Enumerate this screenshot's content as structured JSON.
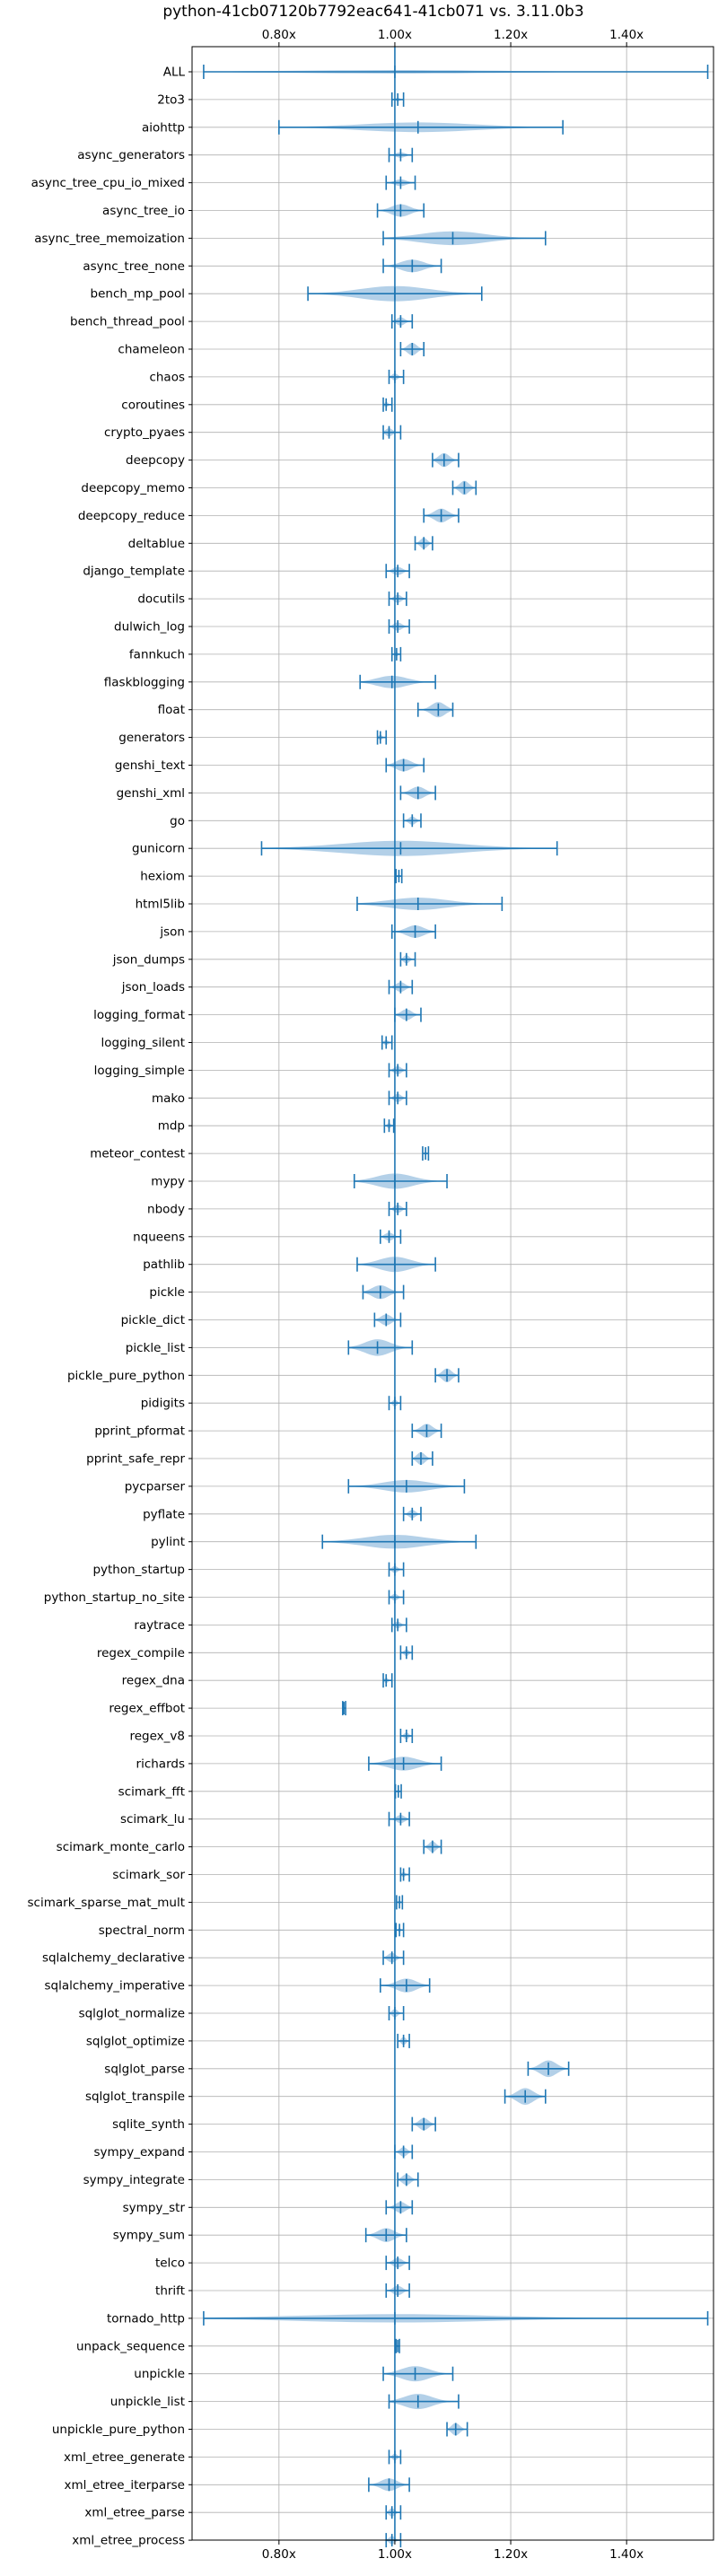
{
  "chart_data": {
    "type": "violin",
    "title": "python-41cb07120b7792eac641-41cb071 vs. 3.11.0b3",
    "orientation": "horizontal",
    "xlim": [
      0.65,
      1.55
    ],
    "x_ticks": [
      0.8,
      1.0,
      1.2,
      1.4
    ],
    "x_tick_labels": [
      "0.80x",
      "1.00x",
      "1.20x",
      "1.40x"
    ],
    "x_ticks_top": true,
    "x_ticks_bottom": true,
    "grid": true,
    "reference_line": 1.0,
    "color": "#1f77b4",
    "fill_color": "#a6c8e4",
    "benchmarks": [
      {
        "name": "ALL",
        "min": 0.67,
        "max": 1.54,
        "median": 1.0,
        "w": 0.01
      },
      {
        "name": "2to3",
        "min": 0.995,
        "max": 1.015,
        "median": 1.005,
        "w": 0.008
      },
      {
        "name": "aiohttp",
        "min": 0.8,
        "max": 1.29,
        "median": 1.04,
        "w": 0.35
      },
      {
        "name": "async_generators",
        "min": 0.99,
        "max": 1.03,
        "median": 1.01,
        "w": 0.2
      },
      {
        "name": "async_tree_cpu_io_mixed",
        "min": 0.985,
        "max": 1.035,
        "median": 1.01,
        "w": 0.25
      },
      {
        "name": "async_tree_io",
        "min": 0.97,
        "max": 1.05,
        "median": 1.01,
        "w": 0.45
      },
      {
        "name": "async_tree_memoization",
        "min": 0.98,
        "max": 1.26,
        "median": 1.1,
        "w": 0.5
      },
      {
        "name": "async_tree_none",
        "min": 0.98,
        "max": 1.08,
        "median": 1.03,
        "w": 0.45
      },
      {
        "name": "bench_mp_pool",
        "min": 0.85,
        "max": 1.15,
        "median": 1.0,
        "w": 0.55
      },
      {
        "name": "bench_thread_pool",
        "min": 0.995,
        "max": 1.03,
        "median": 1.01,
        "w": 0.3
      },
      {
        "name": "chameleon",
        "min": 1.01,
        "max": 1.05,
        "median": 1.03,
        "w": 0.45
      },
      {
        "name": "chaos",
        "min": 0.99,
        "max": 1.015,
        "median": 1.0,
        "w": 0.25
      },
      {
        "name": "coroutines",
        "min": 0.98,
        "max": 0.995,
        "median": 0.985,
        "w": 0.2
      },
      {
        "name": "crypto_pyaes",
        "min": 0.98,
        "max": 1.01,
        "median": 0.99,
        "w": 0.3
      },
      {
        "name": "deepcopy",
        "min": 1.065,
        "max": 1.11,
        "median": 1.085,
        "w": 0.5
      },
      {
        "name": "deepcopy_memo",
        "min": 1.1,
        "max": 1.14,
        "median": 1.12,
        "w": 0.5
      },
      {
        "name": "deepcopy_reduce",
        "min": 1.05,
        "max": 1.11,
        "median": 1.08,
        "w": 0.5
      },
      {
        "name": "deltablue",
        "min": 1.035,
        "max": 1.065,
        "median": 1.05,
        "w": 0.4
      },
      {
        "name": "django_template",
        "min": 0.985,
        "max": 1.025,
        "median": 1.005,
        "w": 0.3
      },
      {
        "name": "docutils",
        "min": 0.99,
        "max": 1.02,
        "median": 1.005,
        "w": 0.3
      },
      {
        "name": "dulwich_log",
        "min": 0.99,
        "max": 1.025,
        "median": 1.005,
        "w": 0.3
      },
      {
        "name": "fannkuch",
        "min": 0.995,
        "max": 1.01,
        "median": 1.003,
        "w": 0.15
      },
      {
        "name": "flaskblogging",
        "min": 0.94,
        "max": 1.07,
        "median": 0.995,
        "w": 0.45
      },
      {
        "name": "float",
        "min": 1.04,
        "max": 1.1,
        "median": 1.075,
        "w": 0.55
      },
      {
        "name": "generators",
        "min": 0.97,
        "max": 0.985,
        "median": 0.975,
        "w": 0.2
      },
      {
        "name": "genshi_text",
        "min": 0.985,
        "max": 1.05,
        "median": 1.015,
        "w": 0.45
      },
      {
        "name": "genshi_xml",
        "min": 1.01,
        "max": 1.07,
        "median": 1.04,
        "w": 0.45
      },
      {
        "name": "go",
        "min": 1.015,
        "max": 1.045,
        "median": 1.03,
        "w": 0.3
      },
      {
        "name": "gunicorn",
        "min": 0.77,
        "max": 1.28,
        "median": 1.01,
        "w": 0.55
      },
      {
        "name": "hexiom",
        "min": 1.002,
        "max": 1.012,
        "median": 1.007,
        "w": 0.1
      },
      {
        "name": "html5lib",
        "min": 0.935,
        "max": 1.185,
        "median": 1.04,
        "w": 0.45
      },
      {
        "name": "json",
        "min": 0.995,
        "max": 1.07,
        "median": 1.035,
        "w": 0.45
      },
      {
        "name": "json_dumps",
        "min": 1.01,
        "max": 1.035,
        "median": 1.02,
        "w": 0.3
      },
      {
        "name": "json_loads",
        "min": 0.99,
        "max": 1.03,
        "median": 1.01,
        "w": 0.35
      },
      {
        "name": "logging_format",
        "min": 1.0,
        "max": 1.045,
        "median": 1.02,
        "w": 0.4
      },
      {
        "name": "logging_silent",
        "min": 0.978,
        "max": 0.995,
        "median": 0.985,
        "w": 0.2
      },
      {
        "name": "logging_simple",
        "min": 0.99,
        "max": 1.02,
        "median": 1.005,
        "w": 0.3
      },
      {
        "name": "mako",
        "min": 0.99,
        "max": 1.02,
        "median": 1.005,
        "w": 0.3
      },
      {
        "name": "mdp",
        "min": 0.982,
        "max": 0.998,
        "median": 0.99,
        "w": 0.2
      },
      {
        "name": "meteor_contest",
        "min": 1.048,
        "max": 1.058,
        "median": 1.053,
        "w": 0.1
      },
      {
        "name": "mypy",
        "min": 0.93,
        "max": 1.09,
        "median": 1.0,
        "w": 0.55
      },
      {
        "name": "nbody",
        "min": 0.99,
        "max": 1.02,
        "median": 1.005,
        "w": 0.3
      },
      {
        "name": "nqueens",
        "min": 0.975,
        "max": 1.01,
        "median": 0.99,
        "w": 0.3
      },
      {
        "name": "pathlib",
        "min": 0.935,
        "max": 1.07,
        "median": 1.0,
        "w": 0.55
      },
      {
        "name": "pickle",
        "min": 0.945,
        "max": 1.015,
        "median": 0.975,
        "w": 0.5
      },
      {
        "name": "pickle_dict",
        "min": 0.965,
        "max": 1.01,
        "median": 0.985,
        "w": 0.4
      },
      {
        "name": "pickle_list",
        "min": 0.92,
        "max": 1.03,
        "median": 0.97,
        "w": 0.6
      },
      {
        "name": "pickle_pure_python",
        "min": 1.07,
        "max": 1.11,
        "median": 1.09,
        "w": 0.5
      },
      {
        "name": "pidigits",
        "min": 0.99,
        "max": 1.01,
        "median": 1.0,
        "w": 0.25
      },
      {
        "name": "pprint_pformat",
        "min": 1.03,
        "max": 1.08,
        "median": 1.055,
        "w": 0.5
      },
      {
        "name": "pprint_safe_repr",
        "min": 1.03,
        "max": 1.065,
        "median": 1.045,
        "w": 0.45
      },
      {
        "name": "pycparser",
        "min": 0.92,
        "max": 1.12,
        "median": 1.02,
        "w": 0.45
      },
      {
        "name": "pyflate",
        "min": 1.015,
        "max": 1.045,
        "median": 1.03,
        "w": 0.3
      },
      {
        "name": "pylint",
        "min": 0.875,
        "max": 1.14,
        "median": 1.0,
        "w": 0.5
      },
      {
        "name": "python_startup",
        "min": 0.99,
        "max": 1.015,
        "median": 1.0,
        "w": 0.25
      },
      {
        "name": "python_startup_no_site",
        "min": 0.99,
        "max": 1.015,
        "median": 1.0,
        "w": 0.25
      },
      {
        "name": "raytrace",
        "min": 0.995,
        "max": 1.02,
        "median": 1.005,
        "w": 0.25
      },
      {
        "name": "regex_compile",
        "min": 1.01,
        "max": 1.03,
        "median": 1.02,
        "w": 0.25
      },
      {
        "name": "regex_dna",
        "min": 0.98,
        "max": 0.995,
        "median": 0.985,
        "w": 0.2
      },
      {
        "name": "regex_effbot",
        "min": 0.91,
        "max": 0.915,
        "median": 0.912,
        "w": 0.1
      },
      {
        "name": "regex_v8",
        "min": 1.01,
        "max": 1.03,
        "median": 1.02,
        "w": 0.25
      },
      {
        "name": "richards",
        "min": 0.955,
        "max": 1.08,
        "median": 1.015,
        "w": 0.5
      },
      {
        "name": "scimark_fft",
        "min": 1.001,
        "max": 1.011,
        "median": 1.006,
        "w": 0.1
      },
      {
        "name": "scimark_lu",
        "min": 0.99,
        "max": 1.025,
        "median": 1.01,
        "w": 0.3
      },
      {
        "name": "scimark_monte_carlo",
        "min": 1.05,
        "max": 1.08,
        "median": 1.065,
        "w": 0.4
      },
      {
        "name": "scimark_sor",
        "min": 1.01,
        "max": 1.025,
        "median": 1.015,
        "w": 0.2
      },
      {
        "name": "scimark_sparse_mat_mult",
        "min": 1.003,
        "max": 1.013,
        "median": 1.008,
        "w": 0.1
      },
      {
        "name": "spectral_norm",
        "min": 1.002,
        "max": 1.015,
        "median": 1.008,
        "w": 0.12
      },
      {
        "name": "sqlalchemy_declarative",
        "min": 0.98,
        "max": 1.015,
        "median": 0.995,
        "w": 0.35
      },
      {
        "name": "sqlalchemy_imperative",
        "min": 0.975,
        "max": 1.06,
        "median": 1.02,
        "w": 0.5
      },
      {
        "name": "sqlglot_normalize",
        "min": 0.99,
        "max": 1.015,
        "median": 1.0,
        "w": 0.3
      },
      {
        "name": "sqlglot_optimize",
        "min": 1.005,
        "max": 1.025,
        "median": 1.015,
        "w": 0.3
      },
      {
        "name": "sqlglot_parse",
        "min": 1.23,
        "max": 1.3,
        "median": 1.265,
        "w": 0.6
      },
      {
        "name": "sqlglot_transpile",
        "min": 1.19,
        "max": 1.26,
        "median": 1.225,
        "w": 0.6
      },
      {
        "name": "sqlite_synth",
        "min": 1.03,
        "max": 1.07,
        "median": 1.05,
        "w": 0.45
      },
      {
        "name": "sympy_expand",
        "min": 1.0,
        "max": 1.03,
        "median": 1.015,
        "w": 0.35
      },
      {
        "name": "sympy_integrate",
        "min": 1.005,
        "max": 1.04,
        "median": 1.02,
        "w": 0.4
      },
      {
        "name": "sympy_str",
        "min": 0.985,
        "max": 1.03,
        "median": 1.01,
        "w": 0.4
      },
      {
        "name": "sympy_sum",
        "min": 0.95,
        "max": 1.02,
        "median": 0.985,
        "w": 0.5
      },
      {
        "name": "telco",
        "min": 0.985,
        "max": 1.025,
        "median": 1.005,
        "w": 0.35
      },
      {
        "name": "thrift",
        "min": 0.985,
        "max": 1.025,
        "median": 1.005,
        "w": 0.35
      },
      {
        "name": "tornado_http",
        "min": 0.67,
        "max": 1.54,
        "median": 1.0,
        "w": 0.3
      },
      {
        "name": "unpack_sequence",
        "min": 1.002,
        "max": 1.008,
        "median": 1.005,
        "w": 0.08
      },
      {
        "name": "unpickle",
        "min": 0.98,
        "max": 1.1,
        "median": 1.035,
        "w": 0.55
      },
      {
        "name": "unpickle_list",
        "min": 0.99,
        "max": 1.11,
        "median": 1.04,
        "w": 0.55
      },
      {
        "name": "unpickle_pure_python",
        "min": 1.09,
        "max": 1.125,
        "median": 1.105,
        "w": 0.45
      },
      {
        "name": "xml_etree_generate",
        "min": 0.99,
        "max": 1.01,
        "median": 1.0,
        "w": 0.25
      },
      {
        "name": "xml_etree_iterparse",
        "min": 0.955,
        "max": 1.025,
        "median": 0.99,
        "w": 0.45
      },
      {
        "name": "xml_etree_parse",
        "min": 0.985,
        "max": 1.01,
        "median": 0.995,
        "w": 0.3
      },
      {
        "name": "xml_etree_process",
        "min": 0.985,
        "max": 1.01,
        "median": 0.995,
        "w": 0.3
      }
    ]
  }
}
